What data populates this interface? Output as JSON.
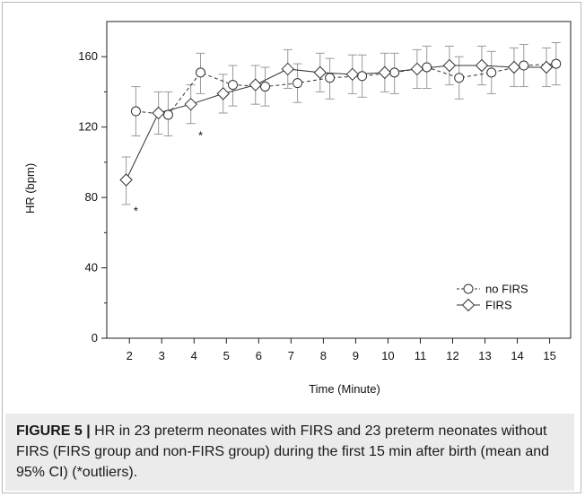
{
  "chart_data": {
    "type": "line",
    "xlabel": "Time (Minute)",
    "ylabel": "HR (bpm)",
    "ylim": [
      0,
      180
    ],
    "y_ticks": [
      0,
      40,
      80,
      120,
      160
    ],
    "x_ticks": [
      2,
      3,
      4,
      5,
      6,
      7,
      8,
      9,
      10,
      11,
      12,
      13,
      14,
      15
    ],
    "legend_position": "bottom-right",
    "series": [
      {
        "name": "no FIRS",
        "marker": "circle",
        "line_style": "dashed",
        "x": [
          2.2,
          3.2,
          4.2,
          5.2,
          6.2,
          7.2,
          8.2,
          9.2,
          10.2,
          11.2,
          12.2,
          13.2,
          14.2,
          15.2
        ],
        "values": [
          129,
          127,
          151,
          144,
          143,
          145,
          148,
          149,
          151,
          154,
          148,
          151,
          155,
          156
        ],
        "ci_low": [
          115,
          115,
          139,
          132,
          132,
          134,
          136,
          137,
          139,
          142,
          136,
          139,
          143,
          144
        ],
        "ci_high": [
          143,
          140,
          162,
          155,
          154,
          156,
          159,
          161,
          162,
          166,
          160,
          163,
          167,
          168
        ]
      },
      {
        "name": "FIRS",
        "marker": "diamond",
        "line_style": "solid",
        "x": [
          1.9,
          2.9,
          3.9,
          4.9,
          5.9,
          6.9,
          7.9,
          8.9,
          9.9,
          10.9,
          11.9,
          12.9,
          13.9,
          14.9
        ],
        "values": [
          90,
          128,
          133,
          139,
          144,
          153,
          151,
          150,
          151,
          153,
          155,
          155,
          154,
          154
        ],
        "ci_low": [
          76,
          116,
          122,
          128,
          133,
          142,
          140,
          139,
          140,
          142,
          144,
          144,
          143,
          143
        ],
        "ci_high": [
          103,
          140,
          144,
          150,
          155,
          164,
          162,
          161,
          162,
          164,
          166,
          166,
          165,
          165
        ]
      }
    ],
    "annotations": [
      {
        "text": "*",
        "x": 2.2,
        "y": 70
      },
      {
        "text": "*",
        "x": 4.2,
        "y": 113
      }
    ]
  },
  "caption": {
    "label": "FIGURE 5 |",
    "text": " HR in 23 preterm neonates with FIRS and 23 preterm neonates without FIRS (FIRS group and non-FIRS group) during the first 15 min after birth (mean and 95% CI) (*outliers)."
  },
  "colors": {
    "line": "#333333",
    "error_bar": "#9a9a9a",
    "axis": "#222222",
    "caption_bg": "#ebebeb"
  }
}
